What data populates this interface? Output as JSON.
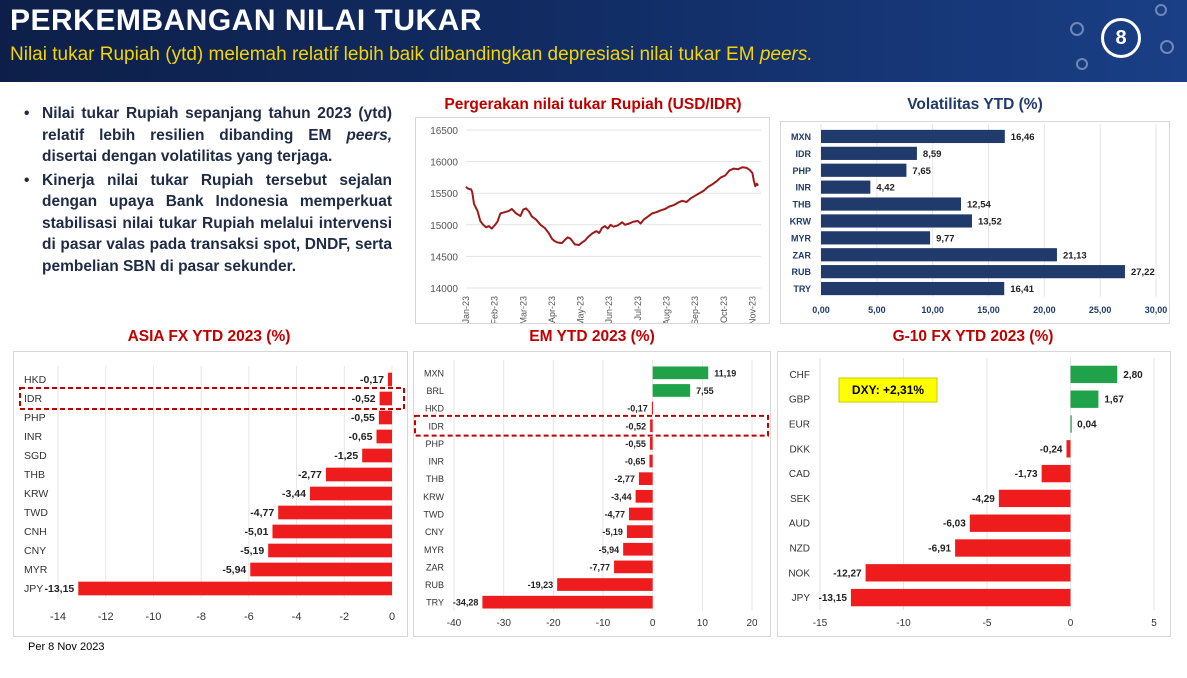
{
  "header": {
    "title": "PERKEMBANGAN NILAI TUKAR",
    "subtitle": "Nilai tukar Rupiah (ytd) melemah relatif lebih baik dibandingkan depresiasi nilai tukar EM",
    "subtitle_italic": "peers.",
    "page_number": "8"
  },
  "bullets": [
    {
      "segments": [
        {
          "text": "Nilai tukar Rupiah sepanjang tahun 2023 (ytd) relatif lebih resilien dibanding EM ",
          "italic": false
        },
        {
          "text": "peers,",
          "italic": true
        },
        {
          "text": " disertai dengan volatilitas yang terjaga.",
          "italic": false
        }
      ]
    },
    {
      "segments": [
        {
          "text": "Kinerja nilai tukar Rupiah tersebut sejalan dengan upaya Bank Indonesia memperkuat stabilisasi nilai tukar Rupiah melalui intervensi di pasar valas pada transaksi spot, DNDF, serta pembelian SBN di pasar sekunder.",
          "italic": false
        }
      ]
    }
  ],
  "footnote": "Per 8 Nov 2023",
  "colors": {
    "banner": "#13306b",
    "subtitle": "#f5d400",
    "title_dark": "#1f3a6b",
    "title_red": "#c00000",
    "line": "#9b1b1b",
    "navy_bar": "#1f3a6b",
    "red_bar": "#ee1c1c",
    "green_bar": "#1fa24a",
    "highlight_box": "#c00000",
    "dxy_box": "#ffff00"
  },
  "chart_data": [
    {
      "id": "usd-idr",
      "type": "line",
      "title": "Pergerakan nilai tukar Rupiah (USD/IDR)",
      "x_ticks": [
        "Jan-23",
        "Feb-23",
        "Mar-23",
        "Apr-23",
        "May-23",
        "Jun-23",
        "Jul-23",
        "Aug-23",
        "Sep-23",
        "Oct-23",
        "Nov-23"
      ],
      "y_ticks": [
        "14000",
        "14500",
        "15000",
        "15500",
        "16000",
        "16500"
      ],
      "ylim": [
        14000,
        16500
      ],
      "x_range": [
        0,
        10.3
      ],
      "grid": true,
      "points": [
        [
          0.0,
          15600
        ],
        [
          0.08,
          15570
        ],
        [
          0.18,
          15560
        ],
        [
          0.22,
          15510
        ],
        [
          0.28,
          15330
        ],
        [
          0.4,
          15220
        ],
        [
          0.5,
          15060
        ],
        [
          0.6,
          15000
        ],
        [
          0.7,
          14960
        ],
        [
          0.8,
          14980
        ],
        [
          0.9,
          14940
        ],
        [
          1.0,
          14990
        ],
        [
          1.1,
          15050
        ],
        [
          1.2,
          15180
        ],
        [
          1.35,
          15200
        ],
        [
          1.5,
          15220
        ],
        [
          1.6,
          15250
        ],
        [
          1.75,
          15180
        ],
        [
          1.9,
          15140
        ],
        [
          2.0,
          15240
        ],
        [
          2.1,
          15260
        ],
        [
          2.2,
          15210
        ],
        [
          2.3,
          15130
        ],
        [
          2.45,
          15080
        ],
        [
          2.6,
          15000
        ],
        [
          2.75,
          14950
        ],
        [
          2.9,
          14860
        ],
        [
          3.0,
          14780
        ],
        [
          3.1,
          14740
        ],
        [
          3.2,
          14720
        ],
        [
          3.35,
          14710
        ],
        [
          3.45,
          14760
        ],
        [
          3.55,
          14800
        ],
        [
          3.65,
          14780
        ],
        [
          3.8,
          14690
        ],
        [
          3.95,
          14680
        ],
        [
          4.05,
          14720
        ],
        [
          4.15,
          14750
        ],
        [
          4.25,
          14800
        ],
        [
          4.4,
          14860
        ],
        [
          4.55,
          14900
        ],
        [
          4.65,
          14870
        ],
        [
          4.75,
          14950
        ],
        [
          4.85,
          14980
        ],
        [
          4.95,
          14940
        ],
        [
          5.05,
          15000
        ],
        [
          5.15,
          14970
        ],
        [
          5.3,
          14990
        ],
        [
          5.45,
          15040
        ],
        [
          5.55,
          15000
        ],
        [
          5.7,
          15020
        ],
        [
          5.85,
          15050
        ],
        [
          6.0,
          15060
        ],
        [
          6.1,
          15020
        ],
        [
          6.2,
          15080
        ],
        [
          6.35,
          15130
        ],
        [
          6.5,
          15180
        ],
        [
          6.65,
          15200
        ],
        [
          6.8,
          15230
        ],
        [
          6.95,
          15250
        ],
        [
          7.1,
          15290
        ],
        [
          7.25,
          15310
        ],
        [
          7.4,
          15350
        ],
        [
          7.55,
          15380
        ],
        [
          7.7,
          15360
        ],
        [
          7.85,
          15420
        ],
        [
          8.0,
          15460
        ],
        [
          8.15,
          15500
        ],
        [
          8.3,
          15540
        ],
        [
          8.45,
          15600
        ],
        [
          8.6,
          15640
        ],
        [
          8.75,
          15690
        ],
        [
          8.9,
          15750
        ],
        [
          9.05,
          15780
        ],
        [
          9.2,
          15860
        ],
        [
          9.35,
          15890
        ],
        [
          9.5,
          15880
        ],
        [
          9.65,
          15910
        ],
        [
          9.8,
          15900
        ],
        [
          9.9,
          15870
        ],
        [
          10.0,
          15820
        ],
        [
          10.05,
          15700
        ],
        [
          10.1,
          15610
        ],
        [
          10.15,
          15650
        ],
        [
          10.2,
          15620
        ]
      ]
    },
    {
      "id": "volatilitas",
      "type": "bar",
      "orientation": "horizontal",
      "title": "Volatilitas YTD (%)",
      "categories": [
        "MXN",
        "IDR",
        "PHP",
        "INR",
        "THB",
        "KRW",
        "MYR",
        "ZAR",
        "RUB",
        "TRY"
      ],
      "values": [
        16.46,
        8.59,
        7.65,
        4.42,
        12.54,
        13.52,
        9.77,
        21.13,
        27.22,
        16.41
      ],
      "value_labels": [
        "16,46",
        "8,59",
        "7,65",
        "4,42",
        "12,54",
        "13,52",
        "9,77",
        "21,13",
        "27,22",
        "16,41"
      ],
      "xlim": [
        0,
        30
      ],
      "x_ticks": [
        "0,00",
        "5,00",
        "10,00",
        "15,00",
        "20,00",
        "25,00",
        "30,00"
      ],
      "grid": true
    },
    {
      "id": "asia-fx",
      "type": "bar",
      "orientation": "horizontal",
      "title": "ASIA FX YTD 2023 (%)",
      "categories": [
        "HKD",
        "IDR",
        "PHP",
        "INR",
        "SGD",
        "THB",
        "KRW",
        "TWD",
        "CNH",
        "CNY",
        "MYR",
        "JPY"
      ],
      "values": [
        -0.17,
        -0.52,
        -0.55,
        -0.65,
        -1.25,
        -2.77,
        -3.44,
        -4.77,
        -5.01,
        -5.19,
        -5.94,
        -13.15
      ],
      "value_labels": [
        "-0,17",
        "-0,52",
        "-0,55",
        "-0,65",
        "-1,25",
        "-2,77",
        "-3,44",
        "-4,77",
        "-5,01",
        "-5,19",
        "-5,94",
        "-13,15"
      ],
      "xlim": [
        -14,
        0
      ],
      "x_ticks": [
        "-14",
        "-12",
        "-10",
        "-8",
        "-6",
        "-4",
        "-2",
        "0"
      ],
      "highlight": "IDR",
      "grid": true
    },
    {
      "id": "em-fx",
      "type": "bar",
      "orientation": "horizontal",
      "title": "EM YTD 2023 (%)",
      "categories": [
        "MXN",
        "BRL",
        "HKD",
        "IDR",
        "PHP",
        "INR",
        "THB",
        "KRW",
        "TWD",
        "CNY",
        "MYR",
        "ZAR",
        "RUB",
        "TRY"
      ],
      "values": [
        11.19,
        7.55,
        -0.17,
        -0.52,
        -0.55,
        -0.65,
        -2.77,
        -3.44,
        -4.77,
        -5.19,
        -5.94,
        -7.77,
        -19.23,
        -34.28
      ],
      "value_labels": [
        "11,19",
        "7,55",
        "-0,17",
        "-0,52",
        "-0,55",
        "-0,65",
        "-2,77",
        "-3,44",
        "-4,77",
        "-5,19",
        "-5,94",
        "-7,77",
        "-19,23",
        "-34,28"
      ],
      "xlim": [
        -40,
        20
      ],
      "x_ticks": [
        "-40",
        "-30",
        "-20",
        "-10",
        "0",
        "10",
        "20"
      ],
      "highlight": "IDR",
      "grid": true
    },
    {
      "id": "g10-fx",
      "type": "bar",
      "orientation": "horizontal",
      "title": "G-10 FX YTD 2023 (%)",
      "categories": [
        "CHF",
        "GBP",
        "EUR",
        "DKK",
        "CAD",
        "SEK",
        "AUD",
        "NZD",
        "NOK",
        "JPY"
      ],
      "values": [
        2.8,
        1.67,
        0.04,
        -0.24,
        -1.73,
        -4.29,
        -6.03,
        -6.91,
        -12.27,
        -13.15
      ],
      "value_labels": [
        "2,80",
        "1,67",
        "0,04",
        "-0,24",
        "-1,73",
        "-4,29",
        "-6,03",
        "-6,91",
        "-12,27",
        "-13,15"
      ],
      "xlim": [
        -15,
        5
      ],
      "x_ticks": [
        "-15",
        "-10",
        "-5",
        "0",
        "5"
      ],
      "annotation": "DXY: +2,31%",
      "grid": true
    }
  ]
}
